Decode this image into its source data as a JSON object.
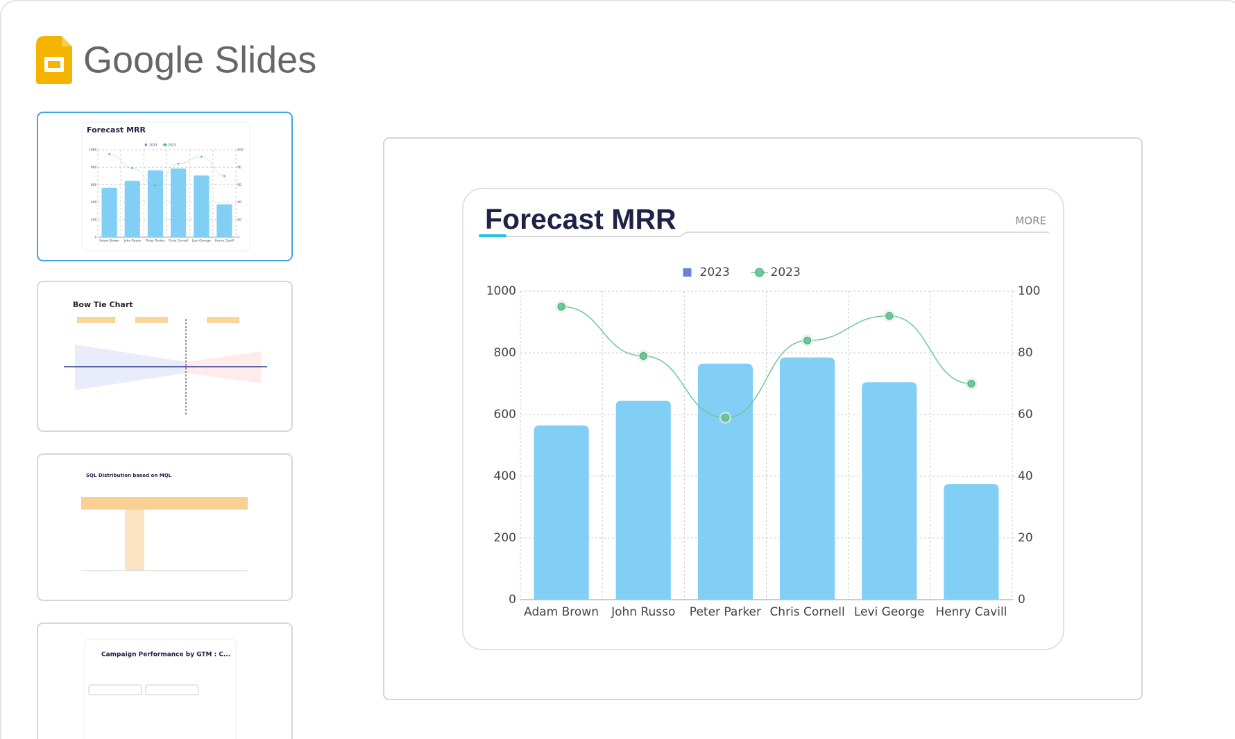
{
  "app": {
    "name": "Google Slides"
  },
  "thumbnails": [
    {
      "title": "Forecast MRR"
    },
    {
      "title": "Bow Tie Chart"
    },
    {
      "title": "SQL Distribution based on MQL"
    },
    {
      "title": "Campaign Performance by GTM : C..."
    }
  ],
  "chart_data": {
    "type": "bar",
    "title": "Forecast MRR",
    "more": "MORE",
    "categories": [
      "Adam Brown",
      "John Russo",
      "Peter Parker",
      "Chris Cornell",
      "Levi George",
      "Henry Cavill"
    ],
    "series": [
      {
        "name": "2023",
        "type": "bar",
        "color": "#81cff4",
        "legend_color": "#6a7fdb",
        "values": [
          565,
          645,
          765,
          785,
          705,
          375
        ]
      },
      {
        "name": "2023",
        "type": "line",
        "axis": "y2",
        "color": "#6cc79a",
        "values": [
          95,
          79,
          59,
          84,
          92,
          70
        ]
      }
    ],
    "ylim": [
      0,
      1000
    ],
    "yticks": [
      0,
      200,
      400,
      600,
      800,
      1000
    ],
    "y2lim": [
      0,
      100
    ],
    "y2ticks": [
      0,
      20,
      40,
      60,
      80,
      100
    ],
    "grid": true
  }
}
